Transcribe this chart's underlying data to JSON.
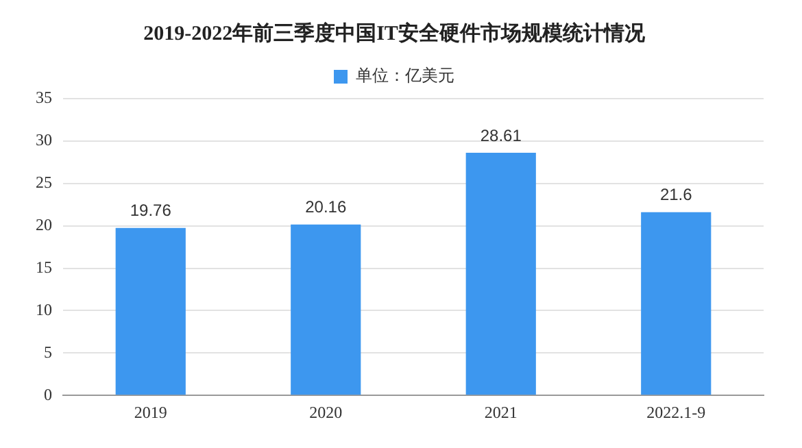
{
  "chart_data": {
    "type": "bar",
    "title": "2019-2022年前三季度中国IT安全硬件市场规模统计情况",
    "categories": [
      "2019",
      "2020",
      "2021",
      "2022.1-9"
    ],
    "series": [
      {
        "name": "单位：亿美元",
        "color": "#3d97ef",
        "values": [
          19.76,
          20.16,
          28.61,
          21.6
        ]
      }
    ],
    "ylim": [
      0,
      35
    ],
    "yticks": [
      0,
      5,
      10,
      15,
      20,
      25,
      30,
      35
    ],
    "grid": "y",
    "legend": "top",
    "data_labels": true
  }
}
